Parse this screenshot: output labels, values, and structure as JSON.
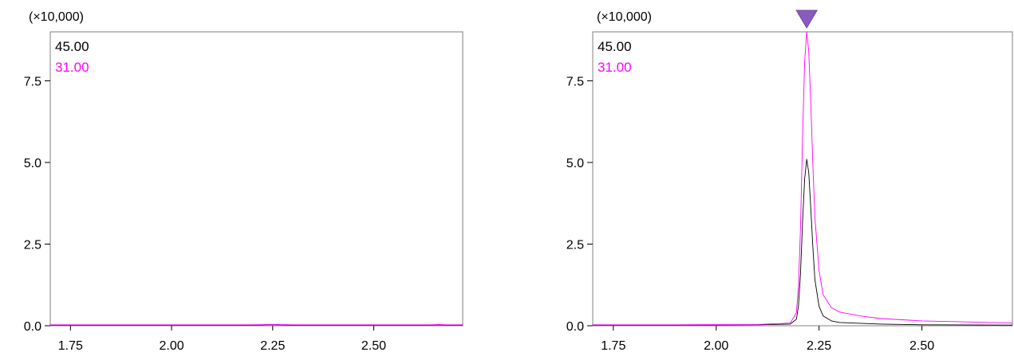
{
  "chart_data": [
    {
      "type": "line",
      "scale_label": "(×10,000)",
      "xlim": [
        1.7,
        2.72
      ],
      "ylim": [
        0,
        9.0
      ],
      "x_ticks": [
        1.75,
        2.0,
        2.25,
        2.5
      ],
      "x_tick_labels": [
        "1.75",
        "2.00",
        "2.25",
        "2.50"
      ],
      "y_ticks": [
        0,
        2.5,
        5.0,
        7.5
      ],
      "y_tick_labels": [
        "0.0",
        "2.5",
        "5.0",
        "7.5"
      ],
      "peak_marker": null,
      "series": [
        {
          "name": "45.00",
          "color": "#000000",
          "x": [
            1.7,
            1.8,
            1.9,
            2.0,
            2.1,
            2.2,
            2.24,
            2.26,
            2.3,
            2.4,
            2.5,
            2.64,
            2.66,
            2.68,
            2.72
          ],
          "y": [
            0.02,
            0.02,
            0.02,
            0.02,
            0.02,
            0.02,
            0.03,
            0.03,
            0.02,
            0.02,
            0.02,
            0.02,
            0.03,
            0.02,
            0.02
          ]
        },
        {
          "name": "31.00",
          "color": "#ff00ff",
          "x": [
            1.7,
            1.8,
            1.9,
            2.0,
            2.1,
            2.2,
            2.24,
            2.26,
            2.3,
            2.4,
            2.5,
            2.64,
            2.66,
            2.68,
            2.72
          ],
          "y": [
            0.03,
            0.03,
            0.03,
            0.03,
            0.03,
            0.03,
            0.04,
            0.04,
            0.03,
            0.03,
            0.03,
            0.03,
            0.04,
            0.03,
            0.03
          ]
        }
      ]
    },
    {
      "type": "line",
      "scale_label": "(×10,000)",
      "xlim": [
        1.7,
        2.72
      ],
      "ylim": [
        0,
        9.0
      ],
      "x_ticks": [
        1.75,
        2.0,
        2.25,
        2.5
      ],
      "x_tick_labels": [
        "1.75",
        "2.00",
        "2.25",
        "2.50"
      ],
      "y_ticks": [
        0,
        2.5,
        5.0,
        7.5
      ],
      "y_tick_labels": [
        "0.0",
        "2.5",
        "5.0",
        "7.5"
      ],
      "peak_marker": {
        "x": 2.22,
        "color": "#8a5bbf"
      },
      "series": [
        {
          "name": "45.00",
          "color": "#000000",
          "x": [
            1.7,
            1.9,
            2.1,
            2.18,
            2.195,
            2.2,
            2.205,
            2.21,
            2.215,
            2.22,
            2.225,
            2.23,
            2.235,
            2.24,
            2.25,
            2.26,
            2.28,
            2.3,
            2.4,
            2.5,
            2.72
          ],
          "y": [
            0.02,
            0.02,
            0.03,
            0.05,
            0.2,
            0.6,
            1.6,
            3.2,
            4.5,
            5.1,
            4.7,
            3.6,
            2.4,
            1.4,
            0.6,
            0.3,
            0.15,
            0.1,
            0.05,
            0.03,
            0.02
          ]
        },
        {
          "name": "31.00",
          "color": "#ff00ff",
          "x": [
            1.7,
            1.9,
            2.1,
            2.18,
            2.195,
            2.2,
            2.205,
            2.21,
            2.215,
            2.22,
            2.225,
            2.23,
            2.235,
            2.24,
            2.25,
            2.26,
            2.28,
            2.3,
            2.35,
            2.4,
            2.5,
            2.6,
            2.72
          ],
          "y": [
            0.03,
            0.03,
            0.04,
            0.08,
            0.4,
            1.2,
            3.0,
            5.8,
            8.1,
            9.0,
            8.4,
            6.8,
            4.9,
            3.3,
            1.7,
            0.95,
            0.55,
            0.42,
            0.3,
            0.22,
            0.15,
            0.12,
            0.08
          ]
        }
      ]
    }
  ]
}
